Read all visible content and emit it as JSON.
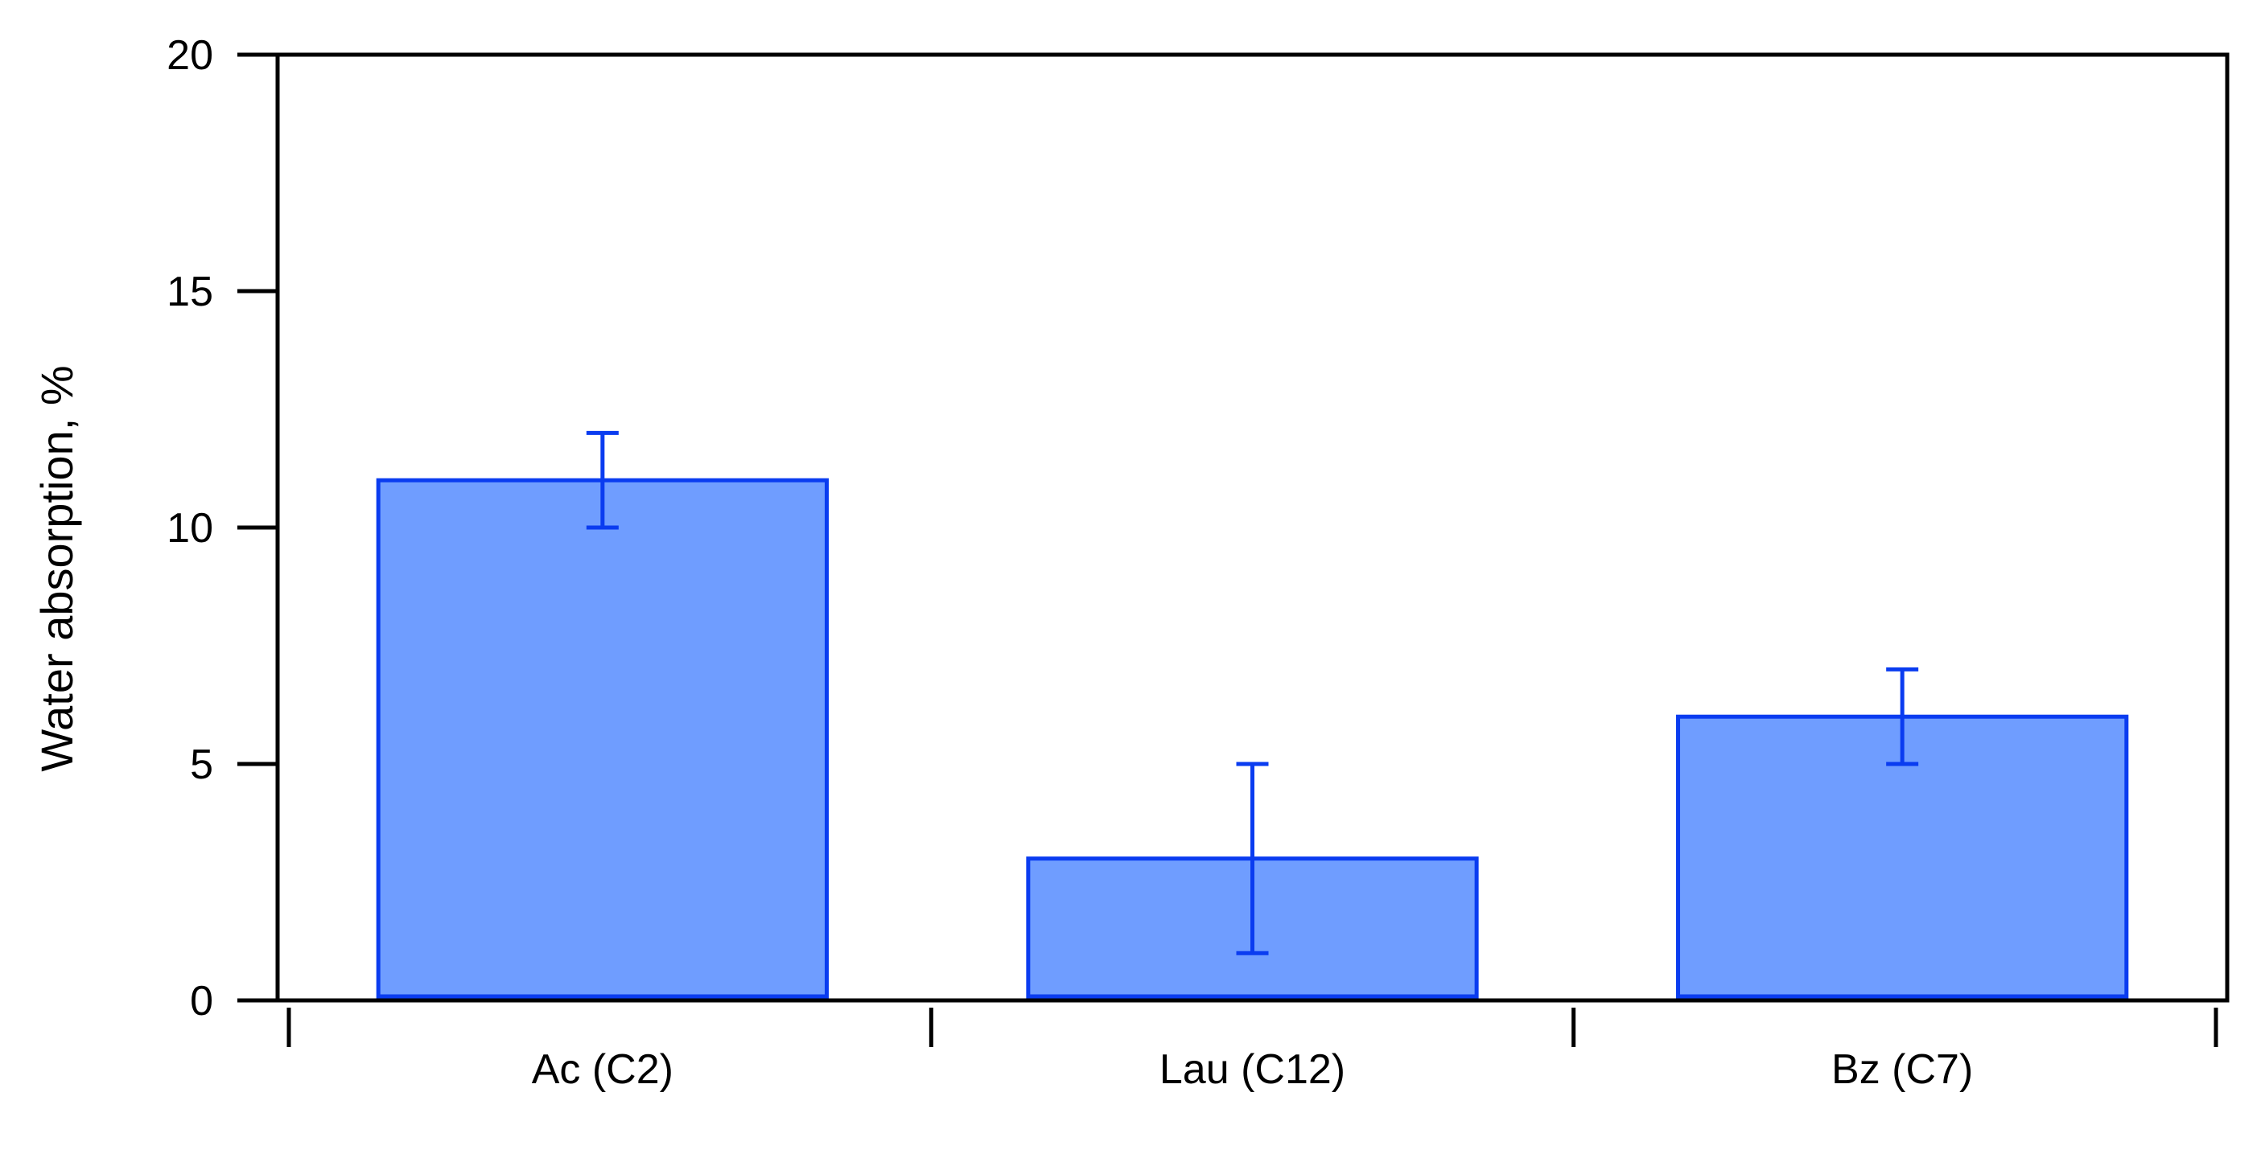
{
  "chart_data": {
    "type": "bar",
    "title": "",
    "xlabel": "",
    "ylabel": "Water absorption, %",
    "categories": [
      "Ac (C2)",
      "Lau (C12)",
      "Bz (C7)"
    ],
    "values": [
      11,
      3,
      6
    ],
    "error_low": [
      10,
      1,
      5
    ],
    "error_high": [
      12,
      5,
      7
    ],
    "ylim": [
      0,
      20
    ],
    "yticks": [
      0,
      5,
      10,
      15,
      20
    ],
    "ytick_labels": [
      "0",
      "5",
      "10",
      "15",
      "20"
    ],
    "grid": false,
    "legend": "none",
    "colors": {
      "bar_fill": "#6f9dff",
      "bar_stroke": "#0a3cf0",
      "error_bar": "#0a3cf0",
      "axis": "#000000"
    }
  }
}
